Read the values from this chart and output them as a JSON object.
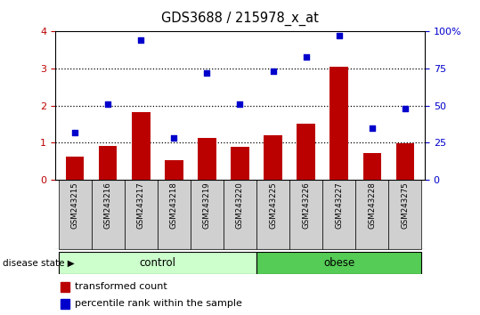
{
  "title": "GDS3688 / 215978_x_at",
  "categories": [
    "GSM243215",
    "GSM243216",
    "GSM243217",
    "GSM243218",
    "GSM243219",
    "GSM243220",
    "GSM243225",
    "GSM243226",
    "GSM243227",
    "GSM243228",
    "GSM243275"
  ],
  "bar_values": [
    0.62,
    0.9,
    1.82,
    0.52,
    1.12,
    0.88,
    1.2,
    1.5,
    3.05,
    0.72,
    0.98
  ],
  "scatter_percentile": [
    32,
    51,
    94.5,
    28,
    72,
    51,
    73,
    83,
    97.5,
    35,
    48
  ],
  "bar_color": "#bb0000",
  "scatter_color": "#0000cc",
  "ylim_left": [
    0,
    4
  ],
  "ylim_right": [
    0,
    100
  ],
  "yticks_left": [
    0,
    1,
    2,
    3,
    4
  ],
  "yticks_right": [
    0,
    25,
    50,
    75,
    100
  ],
  "yticklabels_right": [
    "0",
    "25",
    "50",
    "75",
    "100%"
  ],
  "control_n": 6,
  "obese_n": 5,
  "control_label": "control",
  "obese_label": "obese",
  "disease_state_label": "disease state",
  "legend_bar_label": "transformed count",
  "legend_scatter_label": "percentile rank within the sample",
  "control_color": "#ccffcc",
  "obese_color": "#55cc55",
  "label_bg_color": "#d0d0d0",
  "dotted_line_values": [
    1,
    2,
    3
  ]
}
